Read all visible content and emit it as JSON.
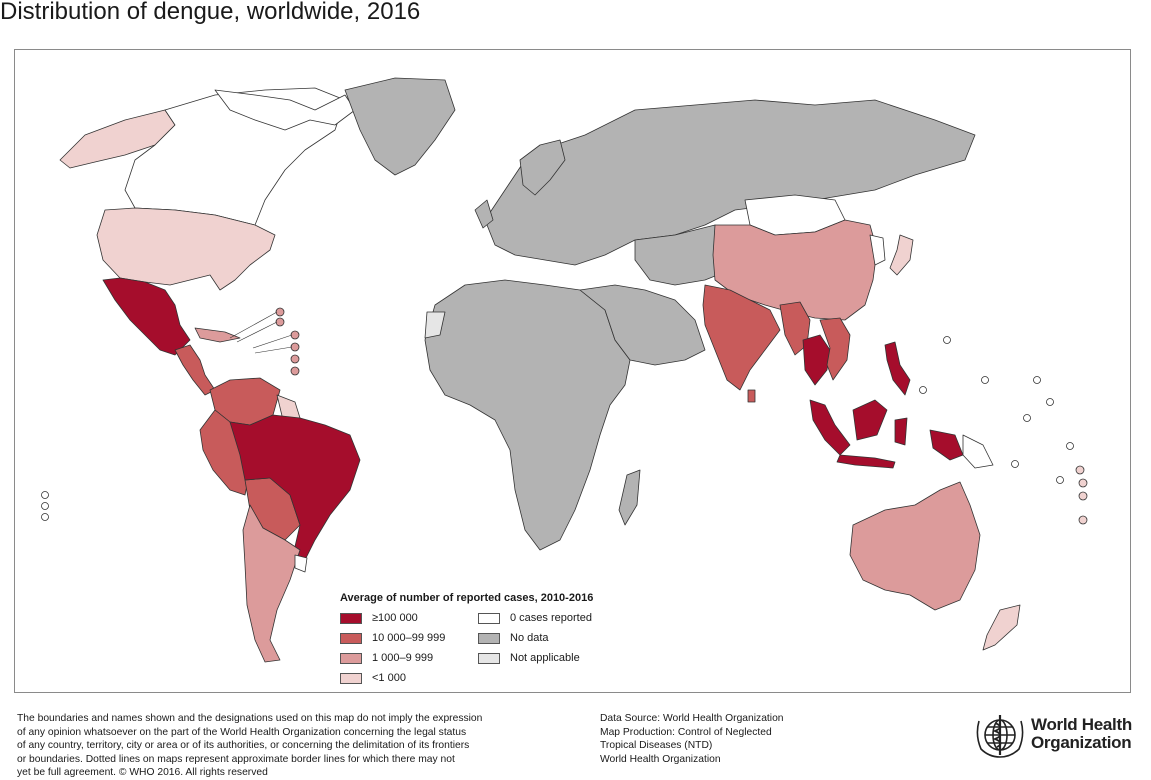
{
  "title": "Distribution of dengue, worldwide, 2016",
  "legend": {
    "title": "Average of number of reported cases, 2010-2016",
    "items": [
      {
        "label": "≥100 000",
        "color": "#a50d2c"
      },
      {
        "label": "10 000–99 999",
        "color": "#c85b5b"
      },
      {
        "label": "1 000–9 999",
        "color": "#dc9b9b"
      },
      {
        "label": "<1 000",
        "color": "#f0d2d0"
      },
      {
        "label": "0 cases reported",
        "color": "#ffffff"
      },
      {
        "label": "No data",
        "color": "#b3b3b3"
      },
      {
        "label": "Not applicable",
        "color": "#e6e6e6"
      }
    ]
  },
  "disclaimer": [
    "The boundaries and names shown and the designations used on this map do not imply the expression",
    "of any opinion whatsoever on the part of the World Health Organization concerning the legal status",
    "of any country, territory, city or area or of its authorities, or concerning the delimitation of its frontiers",
    "or boundaries. Dotted lines on maps represent approximate border lines for which there may not",
    "yet be full agreement. © WHO 2016. All rights reserved"
  ],
  "source": [
    "Data Source: World Health Organization",
    "Map Production: Control of Neglected",
    "Tropical Diseases (NTD)",
    "World Health Organization"
  ],
  "logo": {
    "line1": "World Health",
    "line2": "Organization"
  },
  "colors": {
    "high": "#a50d2c",
    "mid_high": "#c85b5b",
    "mid_low": "#dc9b9b",
    "low": "#f0d2d0",
    "zero": "#ffffff",
    "no_data": "#b3b3b3",
    "not_applicable": "#e6e6e6"
  }
}
